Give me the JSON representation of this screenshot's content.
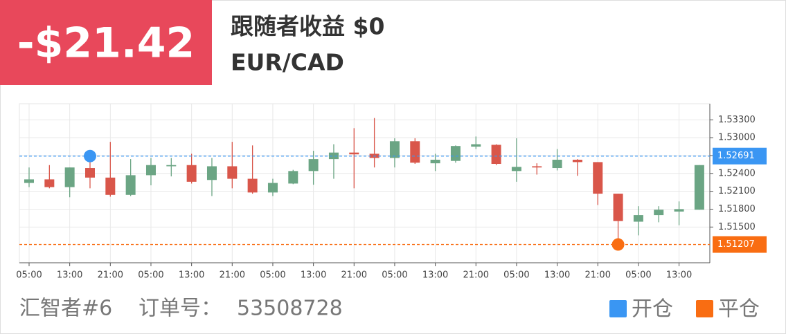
{
  "header": {
    "pnl": "-$21.42",
    "title": "跟随者收益 $0",
    "pair": "EUR/CAD"
  },
  "footer": {
    "trader": "汇智者#6",
    "order_label": "订单号：",
    "order_no": "53508728"
  },
  "chart_data": {
    "type": "candlestick",
    "categories": [
      "05:00",
      null,
      "13:00",
      null,
      "21:00",
      null,
      "05:00",
      null,
      "13:00",
      null,
      "21:00",
      null,
      "05:00",
      null,
      "13:00",
      null,
      "21:00",
      null,
      "05:00",
      null,
      "13:00",
      null,
      "21:00",
      null,
      "05:00",
      null,
      "13:00",
      null,
      "21:00",
      null,
      "05:00",
      null,
      "13:00",
      null
    ],
    "open": [
      1.5224,
      1.523,
      1.5217,
      1.5249,
      1.5233,
      1.5204,
      1.5237,
      1.5252,
      1.5254,
      1.5229,
      1.5252,
      1.5231,
      1.5208,
      1.5223,
      1.5244,
      1.5264,
      1.5275,
      1.5273,
      1.5266,
      1.5294,
      1.5257,
      1.5261,
      1.5285,
      1.5288,
      1.5244,
      1.5252,
      1.5249,
      1.5263,
      1.5259,
      1.5206,
      1.5159,
      1.517,
      1.5176,
      1.5179
    ],
    "high": [
      1.525,
      1.5254,
      1.525,
      1.5266,
      1.5293,
      1.5264,
      1.5266,
      1.5266,
      1.5273,
      1.5266,
      1.5293,
      1.5287,
      1.5231,
      1.5246,
      1.5278,
      1.5289,
      1.5316,
      1.5333,
      1.5299,
      1.5299,
      1.5273,
      1.5287,
      1.5302,
      1.5289,
      1.5299,
      1.5257,
      1.5281,
      1.5264,
      1.5259,
      1.5206,
      1.5185,
      1.5185,
      1.5193,
      1.5254
    ],
    "low": [
      1.5217,
      1.5215,
      1.52,
      1.5215,
      1.5201,
      1.5202,
      1.522,
      1.5235,
      1.5223,
      1.5202,
      1.5215,
      1.5206,
      1.5202,
      1.5222,
      1.5221,
      1.5231,
      1.5215,
      1.525,
      1.525,
      1.5256,
      1.5244,
      1.5258,
      1.5281,
      1.5254,
      1.5226,
      1.5238,
      1.5245,
      1.5236,
      1.5187,
      1.5124,
      1.5136,
      1.5158,
      1.5153,
      1.5179
    ],
    "close": [
      1.523,
      1.5217,
      1.525,
      1.5233,
      1.5204,
      1.5237,
      1.5254,
      1.5254,
      1.5226,
      1.5252,
      1.5231,
      1.5208,
      1.5224,
      1.5244,
      1.5264,
      1.5275,
      1.5272,
      1.5266,
      1.5294,
      1.5258,
      1.5263,
      1.5286,
      1.5289,
      1.5256,
      1.5251,
      1.525,
      1.5263,
      1.5259,
      1.5206,
      1.516,
      1.517,
      1.5179,
      1.518,
      1.5254
    ],
    "up_color": "#6ba584",
    "down_color": "#d9564a",
    "ylim": [
      1.509,
      1.5357
    ],
    "yticks": [
      {
        "value": 1.515,
        "label": "1.51500"
      },
      {
        "value": 1.518,
        "label": "1.51800"
      },
      {
        "value": 1.521,
        "label": "1.52100"
      },
      {
        "value": 1.524,
        "label": "1.52400"
      },
      {
        "value": 1.527,
        "label": "1.52700"
      },
      {
        "value": 1.53,
        "label": "1.53000"
      },
      {
        "value": 1.533,
        "label": "1.53300"
      }
    ],
    "grid": true,
    "price_lines": [
      {
        "name": "开仓",
        "value": 1.52691,
        "color": "#3a96f3",
        "index": 3
      },
      {
        "name": "平仓",
        "value": 1.51207,
        "color": "#f96d12",
        "index": 29
      }
    ]
  }
}
